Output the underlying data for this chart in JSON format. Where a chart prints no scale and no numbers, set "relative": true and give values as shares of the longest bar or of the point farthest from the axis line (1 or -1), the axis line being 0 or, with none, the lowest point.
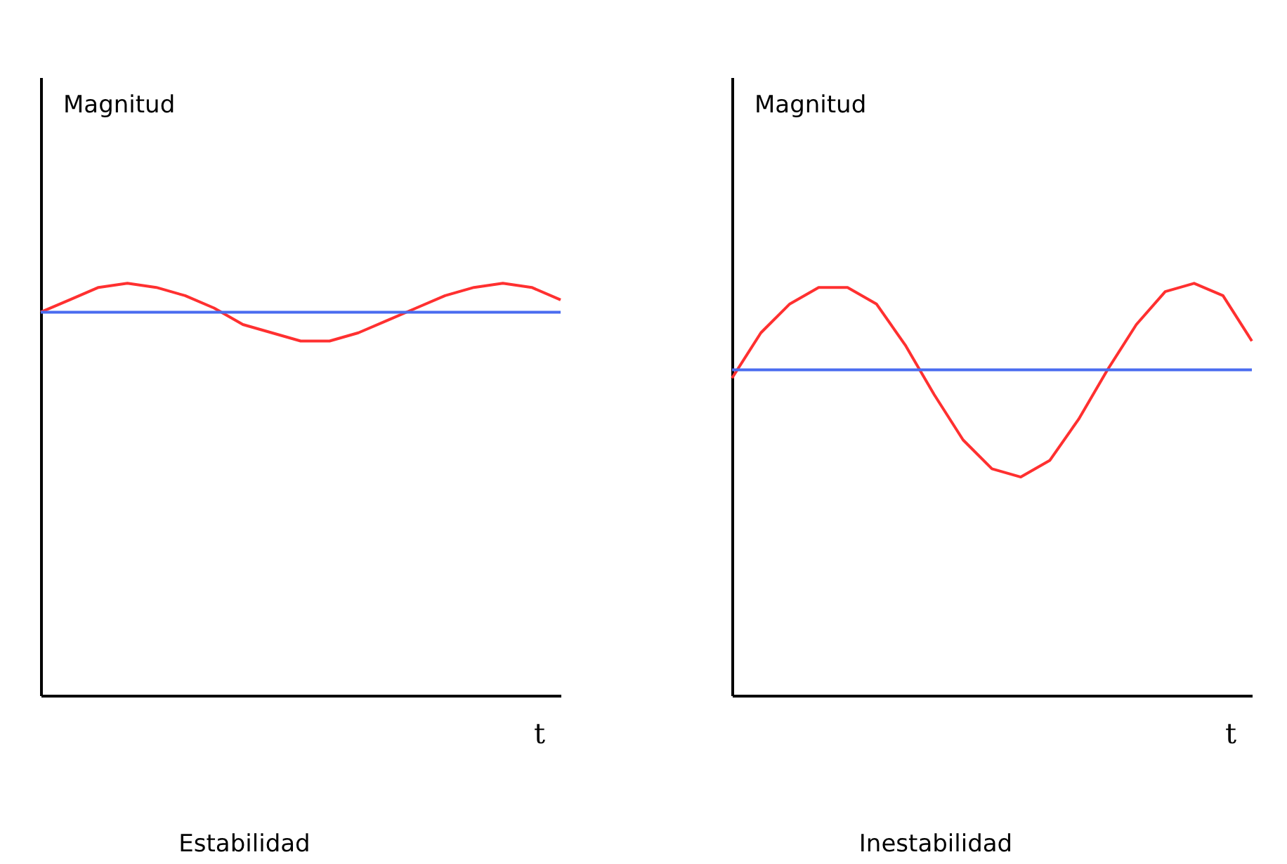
{
  "chart_data": [
    {
      "type": "line",
      "title": "Estabilidad",
      "xlabel": "t",
      "ylabel": "Magnitud",
      "relative": true,
      "legend": false,
      "grid": false,
      "tick_labels": false,
      "categories": [
        null,
        null,
        null,
        null,
        null,
        null,
        null,
        null,
        null,
        null,
        null,
        null,
        null,
        null,
        null,
        null,
        null,
        null,
        null
      ],
      "series": [
        {
          "color": "#ff3030",
          "values": [
            0.93,
            0.96,
            0.99,
            1.0,
            0.99,
            0.97,
            0.94,
            0.9,
            0.88,
            0.86,
            0.86,
            0.88,
            0.91,
            0.94,
            0.97,
            0.99,
            1.0,
            0.99,
            0.96
          ]
        },
        {
          "color": "#4a6cf0",
          "values": [
            0.93,
            0.93,
            0.93,
            0.93,
            0.93,
            0.93,
            0.93,
            0.93,
            0.93,
            0.93,
            0.93,
            0.93,
            0.93,
            0.93,
            0.93,
            0.93,
            0.93,
            0.93,
            0.93
          ]
        }
      ]
    },
    {
      "type": "line",
      "title": "Inestabilidad",
      "xlabel": "t",
      "ylabel": "Magnitud",
      "relative": true,
      "legend": false,
      "grid": false,
      "tick_labels": false,
      "categories": [
        null,
        null,
        null,
        null,
        null,
        null,
        null,
        null,
        null,
        null,
        null,
        null,
        null,
        null,
        null,
        null,
        null,
        null,
        null
      ],
      "series": [
        {
          "color": "#ff3030",
          "values": [
            0.77,
            0.88,
            0.95,
            0.99,
            0.99,
            0.95,
            0.85,
            0.73,
            0.62,
            0.55,
            0.53,
            0.57,
            0.67,
            0.79,
            0.9,
            0.98,
            1.0,
            0.97,
            0.86
          ]
        },
        {
          "color": "#4a6cf0",
          "values": [
            0.79,
            0.79,
            0.79,
            0.79,
            0.79,
            0.79,
            0.79,
            0.79,
            0.79,
            0.79,
            0.79,
            0.79,
            0.79,
            0.79,
            0.79,
            0.79,
            0.79,
            0.79,
            0.79
          ]
        }
      ]
    }
  ]
}
